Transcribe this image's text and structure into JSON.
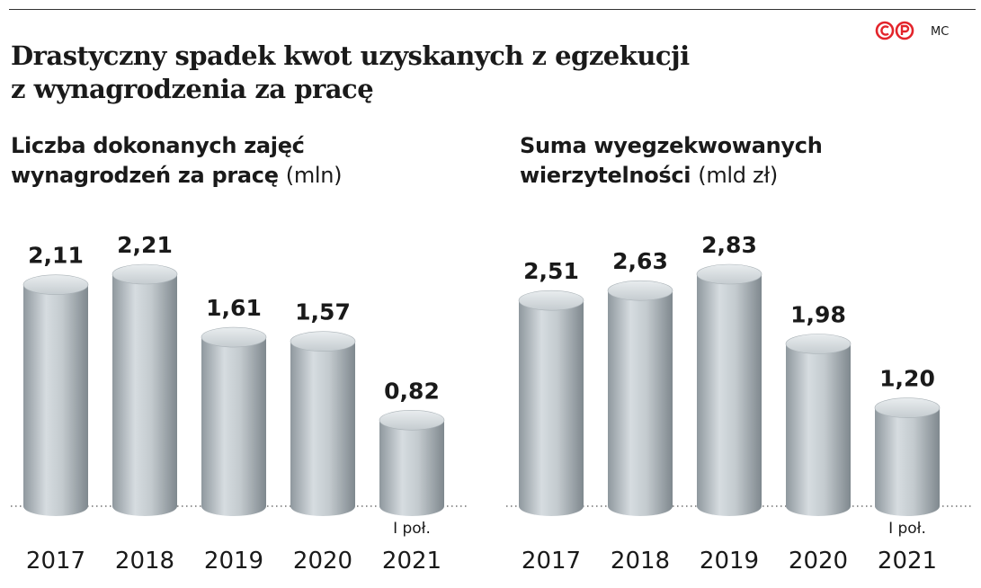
{
  "header": {
    "title": "Drastyczny spadek kwot uzyskanych z egzekucji z wynagrodzenia za pracę",
    "logo_text": "MC",
    "accent_color": "#e3242b"
  },
  "charts": {
    "left": {
      "subtitle": "Liczba dokonanych zajęć wynagrodzeń za pracę",
      "unit": "(mln)"
    },
    "right": {
      "subtitle": "Suma wyegzekwowanych wierzytelności",
      "unit": "(mld zł)"
    }
  },
  "chart_data": [
    {
      "type": "bar",
      "title": "Liczba dokonanych zajęć wynagrodzeń za pracę",
      "unit": "(mln)",
      "categories": [
        "2017",
        "2018",
        "2019",
        "2020",
        "2021"
      ],
      "category_notes": [
        "",
        "",
        "",
        "",
        "I poł."
      ],
      "values": [
        2.11,
        2.21,
        1.61,
        1.57,
        0.82
      ],
      "value_labels": [
        "2,11",
        "2,21",
        "1,61",
        "1,57",
        "0,82"
      ],
      "ylim": [
        0,
        2.21
      ],
      "bar_color": "#bcc4c9",
      "grid": false
    },
    {
      "type": "bar",
      "title": "Suma wyegzekwowanych wierzytelności",
      "unit": "(mld zł)",
      "categories": [
        "2017",
        "2018",
        "2019",
        "2020",
        "2021"
      ],
      "category_notes": [
        "",
        "",
        "",
        "",
        "I poł."
      ],
      "values": [
        2.51,
        2.63,
        2.83,
        1.98,
        1.2
      ],
      "value_labels": [
        "2,51",
        "2,63",
        "2,83",
        "1,98",
        "1,20"
      ],
      "ylim": [
        0,
        2.83
      ],
      "bar_color": "#bcc4c9",
      "grid": false
    }
  ]
}
